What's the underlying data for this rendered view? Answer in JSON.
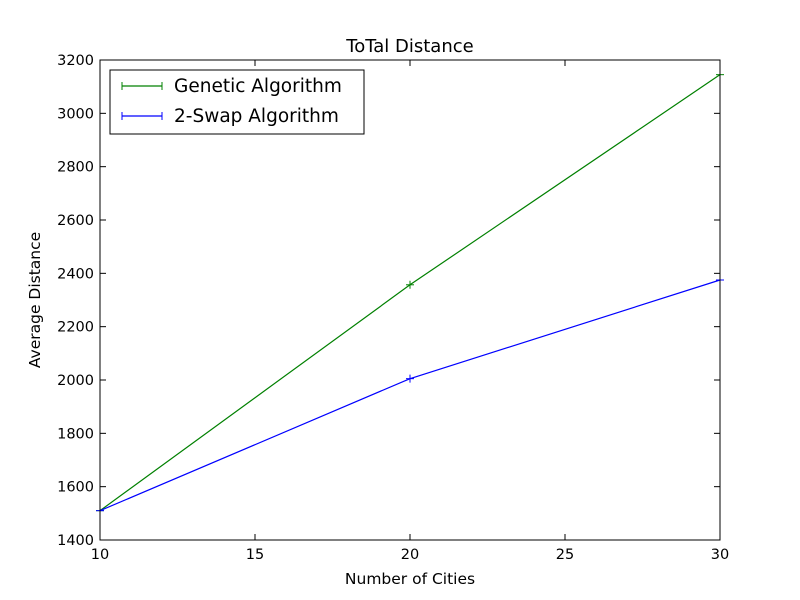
{
  "chart_data": {
    "type": "line",
    "title": "ToTal Distance",
    "xlabel": "Number of Cities",
    "ylabel": "Average Distance",
    "x": [
      10,
      20,
      30
    ],
    "xlim": [
      10,
      30
    ],
    "ylim": [
      1400,
      3200
    ],
    "xticks": [
      "10",
      "15",
      "20",
      "25",
      "30"
    ],
    "yticks": [
      "1400",
      "1600",
      "1800",
      "2000",
      "2200",
      "2400",
      "2600",
      "2800",
      "3000",
      "3200"
    ],
    "grid": false,
    "legend_position": "top-left",
    "series": [
      {
        "name": "Genetic Algorithm",
        "values": [
          1510,
          2357,
          3145
        ],
        "color": "#008000",
        "marker": "plus"
      },
      {
        "name": "2-Swap Algorithm",
        "values": [
          1510,
          2005,
          2375
        ],
        "color": "#0000ff",
        "marker": "plus"
      }
    ]
  }
}
